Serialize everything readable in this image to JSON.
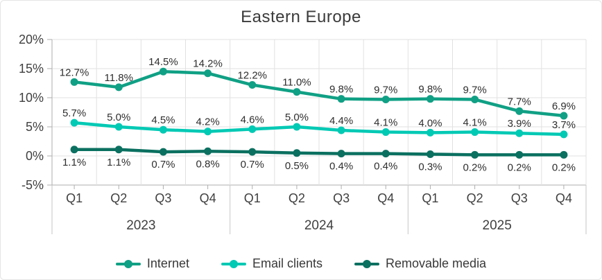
{
  "chart_data": {
    "type": "line",
    "title": "Eastern Europe",
    "categories": [
      "Q1",
      "Q2",
      "Q3",
      "Q4",
      "Q1",
      "Q2",
      "Q3",
      "Q4",
      "Q1",
      "Q2",
      "Q3",
      "Q4"
    ],
    "year_groups": [
      {
        "label": "2023",
        "span": 4
      },
      {
        "label": "2024",
        "span": 4
      },
      {
        "label": "2025",
        "span": 4
      }
    ],
    "y_ticks": [
      {
        "label": "20%",
        "value": 20
      },
      {
        "label": "15%",
        "value": 15
      },
      {
        "label": "10%",
        "value": 10
      },
      {
        "label": "5%",
        "value": 5
      },
      {
        "label": "0%",
        "value": 0
      },
      {
        "label": "-5%",
        "value": -5
      }
    ],
    "ylim": [
      -5,
      20
    ],
    "grid": true,
    "legend_position": "bottom",
    "colors": {
      "grid": "#e1e1e1",
      "axis": "#aeaeae",
      "axis_text": "#3f3f3f",
      "data_label": "#2e2e2e",
      "year_divider": "#c6c6c6"
    },
    "series": [
      {
        "name": "Internet",
        "color": "#10a085",
        "label_position": "above",
        "values": [
          12.7,
          11.8,
          14.5,
          14.2,
          12.2,
          11.0,
          9.8,
          9.7,
          9.8,
          9.7,
          7.7,
          6.9
        ],
        "labels": [
          "12.7%",
          "11.8%",
          "14.5%",
          "14.2%",
          "12.2%",
          "11.0%",
          "9.8%",
          "9.7%",
          "9.8%",
          "9.7%",
          "7.7%",
          "6.9%"
        ]
      },
      {
        "name": "Email clients",
        "color": "#00c9b4",
        "label_position": "above",
        "values": [
          5.7,
          5.0,
          4.5,
          4.2,
          4.6,
          5.0,
          4.4,
          4.1,
          4.0,
          4.1,
          3.9,
          3.7
        ],
        "labels": [
          "5.7%",
          "5.0%",
          "4.5%",
          "4.2%",
          "4.6%",
          "5.0%",
          "4.4%",
          "4.1%",
          "4.0%",
          "4.1%",
          "3.9%",
          "3.7%"
        ]
      },
      {
        "name": "Removable media",
        "color": "#0b7060",
        "label_position": "below",
        "values": [
          1.1,
          1.1,
          0.7,
          0.8,
          0.7,
          0.5,
          0.4,
          0.4,
          0.3,
          0.2,
          0.2,
          0.2
        ],
        "labels": [
          "1.1%",
          "1.1%",
          "0.7%",
          "0.8%",
          "0.7%",
          "0.5%",
          "0.4%",
          "0.4%",
          "0.3%",
          "0.2%",
          "0.2%",
          "0.2%"
        ]
      }
    ]
  }
}
